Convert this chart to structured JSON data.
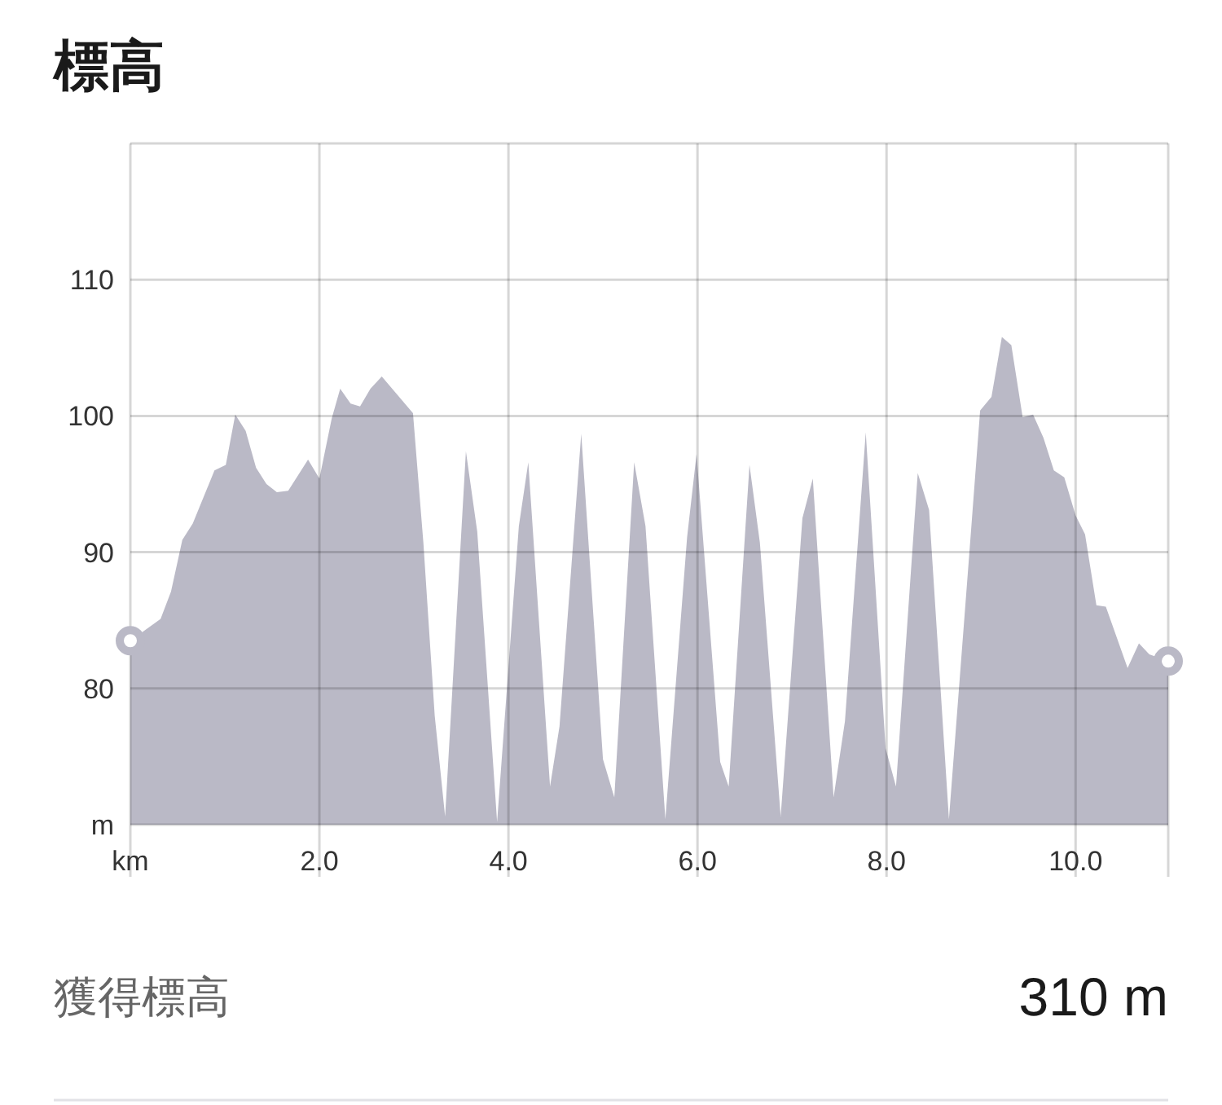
{
  "chart_data": {
    "type": "area",
    "title": "標高",
    "x": [
      0,
      0.32,
      0.43,
      0.55,
      0.66,
      0.89,
      1.01,
      1.11,
      1.22,
      1.33,
      1.44,
      1.55,
      1.67,
      1.88,
      2.0,
      2.13,
      2.22,
      2.33,
      2.43,
      2.54,
      2.66,
      2.99,
      3.1,
      3.22,
      3.33,
      3.55,
      3.67,
      3.88,
      4.11,
      4.21,
      4.44,
      4.54,
      4.77,
      5.0,
      5.12,
      5.33,
      5.45,
      5.66,
      5.89,
      5.99,
      6.24,
      6.33,
      6.55,
      6.66,
      6.88,
      7.11,
      7.22,
      7.44,
      7.56,
      7.78,
      7.99,
      8.1,
      8.33,
      8.45,
      8.66,
      8.88,
      8.99,
      9.11,
      9.22,
      9.32,
      9.44,
      9.55,
      9.66,
      9.77,
      9.88,
      10.0,
      10.1,
      10.22,
      10.32,
      10.55,
      10.67,
      10.78,
      10.98
    ],
    "series": [
      {
        "color": "#bab9c6",
        "values": [
          83.5,
          85.1,
          87.1,
          90.9,
          92.1,
          96.0,
          96.4,
          100.1,
          98.9,
          96.2,
          95.0,
          94.4,
          94.5,
          96.8,
          95.4,
          99.8,
          102.0,
          100.9,
          100.7,
          102.0,
          102.9,
          100.2,
          90.7,
          78.0,
          70.6,
          97.4,
          91.5,
          70.2,
          91.9,
          96.6,
          72.8,
          77.2,
          98.7,
          74.8,
          72.0,
          96.6,
          91.9,
          70.4,
          91.1,
          97.2,
          74.6,
          72.8,
          96.4,
          90.7,
          70.6,
          92.5,
          95.4,
          72.0,
          77.6,
          98.8,
          75.6,
          72.8,
          95.8,
          93.1,
          70.4,
          90.3,
          100.4,
          101.4,
          105.8,
          105.2,
          99.9,
          100.1,
          98.4,
          96.0,
          95.5,
          92.7,
          91.3,
          86.1,
          86.0,
          81.5,
          83.3,
          82.5,
          82.0
        ]
      },
      {
        "type": "scatter",
        "marker": "circle",
        "color": "#bab9c6",
        "x": [
          0,
          10.98
        ],
        "values": [
          83.5,
          82.0
        ]
      }
    ],
    "xlim": [
      0,
      10.98
    ],
    "xticks": [
      {
        "value": 0,
        "label": "km"
      },
      {
        "value": 2,
        "label": "2.0"
      },
      {
        "value": 4,
        "label": "4.0"
      },
      {
        "value": 6,
        "label": "6.0"
      },
      {
        "value": 8,
        "label": "8.0"
      },
      {
        "value": 10,
        "label": "10.0"
      },
      {
        "value": 10.98,
        "label": null
      }
    ],
    "ylim": [
      70,
      120
    ],
    "yticks": [
      {
        "value": 70,
        "label": "m"
      },
      80,
      90,
      100,
      110,
      {
        "value": 120,
        "label": null
      }
    ],
    "grid": true,
    "annotations": [
      "獲得標高",
      "310 m"
    ]
  }
}
